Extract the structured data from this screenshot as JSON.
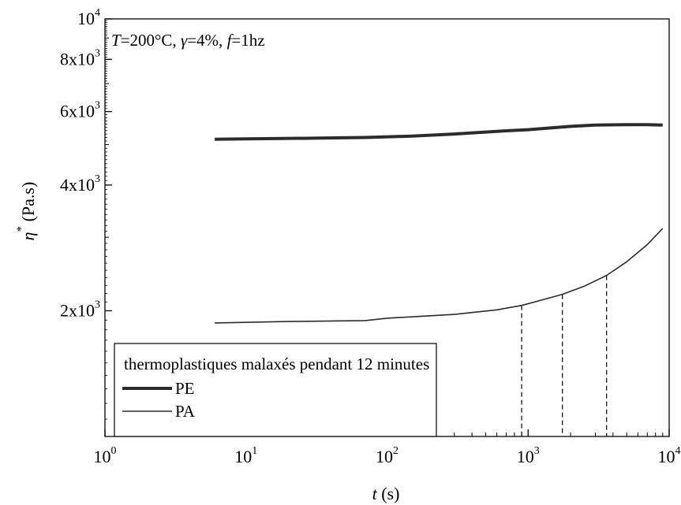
{
  "chart_data": {
    "type": "line",
    "title": "",
    "annotation": {
      "parts": [
        {
          "text": "T",
          "italic": true
        },
        {
          "text": "=200°C, ",
          "italic": false
        },
        {
          "text": "γ",
          "italic": true
        },
        {
          "text": "=4%, ",
          "italic": false
        },
        {
          "text": "f",
          "italic": true
        },
        {
          "text": "=1hz",
          "italic": false
        }
      ]
    },
    "xlabel": {
      "symbol": "t",
      "unit": " (s)"
    },
    "ylabel": {
      "symbol": "η",
      "sup": "*",
      "unit": " (Pa.s)"
    },
    "x_scale": "log",
    "y_scale": "log",
    "xlim": [
      1,
      10000
    ],
    "ylim": [
      1000,
      10000
    ],
    "x_ticks": [
      {
        "value": 1,
        "base": "10",
        "exp": "0"
      },
      {
        "value": 10,
        "base": "10",
        "exp": "1"
      },
      {
        "value": 100,
        "base": "10",
        "exp": "2"
      },
      {
        "value": 1000,
        "base": "10",
        "exp": "3"
      },
      {
        "value": 10000,
        "base": "10",
        "exp": "4"
      }
    ],
    "y_ticks": [
      {
        "value": 2000,
        "base": "2x10",
        "exp": "3"
      },
      {
        "value": 4000,
        "base": "4x10",
        "exp": "3"
      },
      {
        "value": 6000,
        "base": "6x10",
        "exp": "3"
      },
      {
        "value": 8000,
        "base": "8x10",
        "exp": "3"
      },
      {
        "value": 10000,
        "base": "10",
        "exp": "4"
      }
    ],
    "grid": false,
    "legend": {
      "title": "thermoplastiques malaxés pendant 12 minutes",
      "placement": "bottom-left"
    },
    "series": [
      {
        "name": "PE",
        "line": "thick",
        "points": [
          [
            6,
            5150
          ],
          [
            10,
            5160
          ],
          [
            30,
            5180
          ],
          [
            70,
            5200
          ],
          [
            150,
            5240
          ],
          [
            300,
            5300
          ],
          [
            600,
            5380
          ],
          [
            1000,
            5430
          ],
          [
            2000,
            5530
          ],
          [
            3000,
            5570
          ],
          [
            5000,
            5580
          ],
          [
            7000,
            5580
          ],
          [
            9000,
            5570
          ]
        ]
      },
      {
        "name": "PA",
        "line": "thin",
        "points": [
          [
            6,
            1870
          ],
          [
            20,
            1885
          ],
          [
            70,
            1895
          ],
          [
            100,
            1920
          ],
          [
            300,
            1960
          ],
          [
            600,
            2010
          ],
          [
            900,
            2060
          ],
          [
            1300,
            2130
          ],
          [
            1750,
            2190
          ],
          [
            2500,
            2290
          ],
          [
            3600,
            2430
          ],
          [
            5000,
            2620
          ],
          [
            7000,
            2880
          ],
          [
            9000,
            3150
          ]
        ]
      }
    ],
    "reference_lines": [
      {
        "x": 900,
        "y": 2060
      },
      {
        "x": 1750,
        "y": 2190
      },
      {
        "x": 3600,
        "y": 2430
      }
    ],
    "colors": {
      "line": "#2b2b2b",
      "axis": "#000000",
      "background": "#ffffff"
    }
  }
}
